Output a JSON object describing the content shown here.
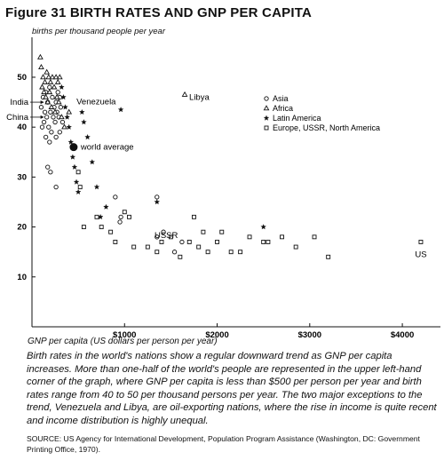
{
  "chart_data": {
    "type": "scatter",
    "title": "Figure 31 BIRTH RATES AND GNP PER CAPITA",
    "ylabel": "births per thousand people per year",
    "xlabel": "GNP per capita (US dollars per person per year)",
    "xlim": [
      0,
      4450
    ],
    "ylim": [
      0,
      58
    ],
    "x_ticks": [
      1000,
      2000,
      3000,
      4000
    ],
    "x_tick_labels": [
      "$1000",
      "$2000",
      "$3000",
      "$4000"
    ],
    "y_ticks": [
      10,
      20,
      30,
      40,
      50
    ],
    "grid": false,
    "legend_position": "top-right",
    "series": [
      {
        "name": "Asia",
        "marker": "open-circle",
        "points": [
          [
            120,
            46
          ],
          [
            150,
            47
          ],
          [
            170,
            45
          ],
          [
            190,
            48
          ],
          [
            220,
            46
          ],
          [
            240,
            44
          ],
          [
            260,
            45
          ],
          [
            280,
            47
          ],
          [
            300,
            46
          ],
          [
            140,
            43
          ],
          [
            160,
            42
          ],
          [
            200,
            43
          ],
          [
            230,
            42
          ],
          [
            250,
            41
          ],
          [
            270,
            43
          ],
          [
            130,
            41
          ],
          [
            180,
            40
          ],
          [
            210,
            39
          ],
          [
            290,
            42
          ],
          [
            310,
            44
          ],
          [
            330,
            41
          ],
          [
            100,
            44
          ],
          [
            110,
            40
          ],
          [
            150,
            38
          ],
          [
            190,
            37
          ],
          [
            260,
            38
          ],
          [
            300,
            39
          ],
          [
            170,
            32
          ],
          [
            200,
            31
          ],
          [
            260,
            28
          ],
          [
            900,
            26
          ],
          [
            950,
            21
          ],
          [
            960,
            22
          ],
          [
            1350,
            26
          ],
          [
            1420,
            19
          ],
          [
            1350,
            18
          ],
          [
            1540,
            15
          ],
          [
            1620,
            17
          ]
        ]
      },
      {
        "name": "Africa",
        "marker": "open-triangle",
        "points": [
          [
            90,
            54
          ],
          [
            100,
            52
          ],
          [
            120,
            50
          ],
          [
            140,
            49
          ],
          [
            160,
            51
          ],
          [
            180,
            50
          ],
          [
            200,
            49
          ],
          [
            220,
            50
          ],
          [
            240,
            48
          ],
          [
            260,
            50
          ],
          [
            280,
            49
          ],
          [
            300,
            50
          ],
          [
            110,
            48
          ],
          [
            130,
            47
          ],
          [
            150,
            46
          ],
          [
            170,
            45
          ],
          [
            190,
            47
          ],
          [
            210,
            44
          ],
          [
            250,
            43
          ],
          [
            270,
            46
          ],
          [
            290,
            45
          ],
          [
            320,
            42
          ],
          [
            350,
            40
          ],
          [
            400,
            43
          ],
          [
            1650,
            46.5
          ]
        ]
      },
      {
        "name": "Latin America",
        "marker": "filled-star",
        "points": [
          [
            320,
            48
          ],
          [
            340,
            46
          ],
          [
            360,
            44
          ],
          [
            380,
            42
          ],
          [
            400,
            40
          ],
          [
            420,
            37
          ],
          [
            440,
            34
          ],
          [
            460,
            32
          ],
          [
            480,
            29
          ],
          [
            500,
            27
          ],
          [
            540,
            43
          ],
          [
            560,
            41
          ],
          [
            600,
            38
          ],
          [
            650,
            33
          ],
          [
            700,
            28
          ],
          [
            740,
            22
          ],
          [
            800,
            24
          ],
          [
            960,
            43.5
          ],
          [
            1350,
            25
          ],
          [
            2500,
            20
          ]
        ]
      },
      {
        "name": "Europe, USSR, North America",
        "marker": "open-square",
        "points": [
          [
            500,
            31
          ],
          [
            520,
            28
          ],
          [
            560,
            20
          ],
          [
            700,
            22
          ],
          [
            750,
            20
          ],
          [
            850,
            19
          ],
          [
            900,
            17
          ],
          [
            1000,
            23
          ],
          [
            1050,
            22
          ],
          [
            1100,
            16
          ],
          [
            1250,
            16
          ],
          [
            1350,
            15
          ],
          [
            1400,
            17
          ],
          [
            1500,
            18
          ],
          [
            1600,
            14
          ],
          [
            1700,
            17
          ],
          [
            1750,
            22
          ],
          [
            1800,
            16
          ],
          [
            1850,
            19
          ],
          [
            1900,
            15
          ],
          [
            2000,
            17
          ],
          [
            2050,
            19
          ],
          [
            2150,
            15
          ],
          [
            2250,
            15
          ],
          [
            2350,
            18
          ],
          [
            2500,
            17
          ],
          [
            2550,
            17
          ],
          [
            2700,
            18
          ],
          [
            2850,
            16
          ],
          [
            3050,
            18
          ],
          [
            3200,
            14
          ],
          [
            4200,
            17
          ]
        ]
      }
    ],
    "world_average": {
      "label": "world average",
      "x": 450,
      "y": 36
    },
    "annotations": [
      {
        "text": "India",
        "x": 150,
        "y": 45
      },
      {
        "text": "China",
        "x": 150,
        "y": 42
      },
      {
        "text": "Venezuela",
        "x": 960,
        "y": 43.5
      },
      {
        "text": "Libya",
        "x": 1650,
        "y": 46.5
      },
      {
        "text": "USSR",
        "x": 1450,
        "y": 18.3
      },
      {
        "text": "US",
        "x": 4200,
        "y": 17
      }
    ]
  },
  "caption": "Birth rates in the world's nations show a regular downward trend as GNP per capita increases. More than one-half of the world's people are represented in the upper left-hand corner of the graph, where GNP per capita is less than $500 per person per year and birth rates range from 40 to 50 per thousand persons per year. The two major exceptions to the trend, Venezuela and Libya, are oil-exporting nations, where the rise in income is quite recent and income distribution is highly unequal.",
  "source": "SOURCE: US Agency for International Development, Population Program Assistance (Washington, DC: Government Printing Office, 1970)."
}
